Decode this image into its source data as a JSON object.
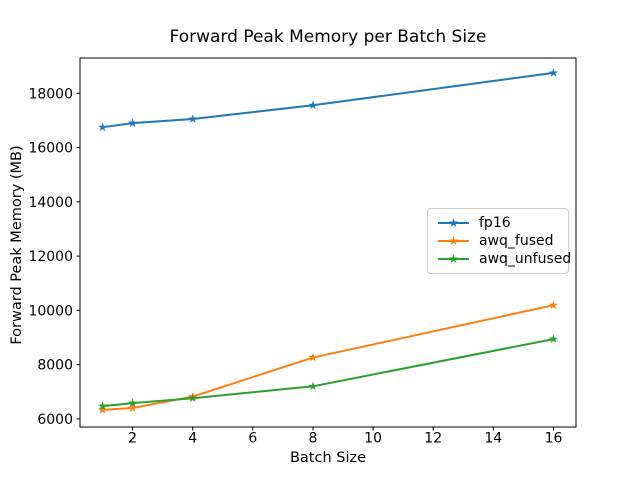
{
  "chart_data": {
    "type": "line",
    "title": "Forward Peak Memory per Batch Size",
    "xlabel": "Batch Size",
    "ylabel": "Forward Peak Memory (MB)",
    "x": [
      1,
      2,
      4,
      8,
      16
    ],
    "series": [
      {
        "name": "fp16",
        "color": "#1f77b4",
        "marker": "star",
        "values": [
          16750,
          16900,
          17050,
          17560,
          18750
        ]
      },
      {
        "name": "awq_fused",
        "color": "#ff7f0e",
        "marker": "star",
        "values": [
          6330,
          6400,
          6820,
          8260,
          10190
        ]
      },
      {
        "name": "awq_unfused",
        "color": "#2ca02c",
        "marker": "star",
        "values": [
          6470,
          6580,
          6760,
          7200,
          8940
        ]
      }
    ],
    "xticks": [
      2,
      4,
      6,
      8,
      10,
      12,
      14,
      16
    ],
    "yticks": [
      6000,
      8000,
      10000,
      12000,
      14000,
      16000,
      18000
    ],
    "xlim": [
      0.25,
      16.75
    ],
    "ylim": [
      5700,
      19300
    ],
    "grid": false,
    "legend_position": "center-right",
    "axis_color": "#000000",
    "background_color": "#ffffff"
  }
}
